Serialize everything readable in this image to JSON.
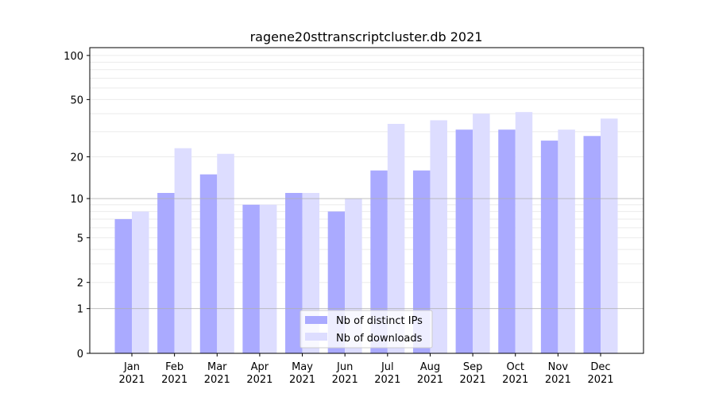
{
  "chart_data": {
    "type": "bar",
    "title": "ragene20sttranscriptcluster.db 2021",
    "xlabel": "",
    "ylabel": "",
    "yscale": "log(1+y)",
    "ylim": [
      0,
      113
    ],
    "yticks": [
      0,
      1,
      2,
      5,
      10,
      20,
      50,
      100
    ],
    "grid": true,
    "legend": "bottom-center",
    "categories": [
      "Jan\n2021",
      "Feb\n2021",
      "Mar\n2021",
      "Apr\n2021",
      "May\n2021",
      "Jun\n2021",
      "Jul\n2021",
      "Aug\n2021",
      "Sep\n2021",
      "Oct\n2021",
      "Nov\n2021",
      "Dec\n2021"
    ],
    "series": [
      {
        "name": "Nb of distinct IPs",
        "color": "#aaaaff",
        "values": [
          7,
          11,
          15,
          9,
          11,
          8,
          16,
          16,
          31,
          31,
          26,
          28
        ]
      },
      {
        "name": "Nb of downloads",
        "color": "#ddddff",
        "values": [
          8,
          23,
          21,
          9,
          11,
          10,
          34,
          36,
          40,
          41,
          31,
          37
        ]
      }
    ]
  }
}
